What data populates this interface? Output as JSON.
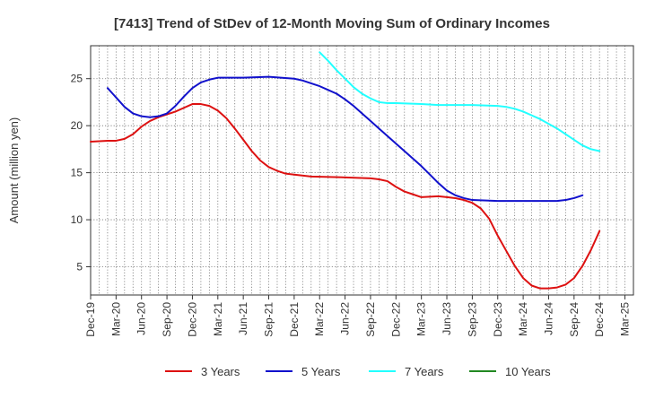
{
  "chart_data": {
    "type": "line",
    "title": "[7413]  Trend of StDev of 12-Month Moving Sum of Ordinary Incomes",
    "xlabel": "",
    "ylabel": "Amount (million yen)",
    "ylim": [
      2,
      28.5
    ],
    "yticks": [
      5,
      10,
      15,
      20,
      25
    ],
    "x_range": [
      0,
      64
    ],
    "x_ticks": [
      {
        "i": 0,
        "label": "Dec-19"
      },
      {
        "i": 3,
        "label": "Mar-20"
      },
      {
        "i": 6,
        "label": "Jun-20"
      },
      {
        "i": 9,
        "label": "Sep-20"
      },
      {
        "i": 12,
        "label": "Dec-20"
      },
      {
        "i": 15,
        "label": "Mar-21"
      },
      {
        "i": 18,
        "label": "Jun-21"
      },
      {
        "i": 21,
        "label": "Sep-21"
      },
      {
        "i": 24,
        "label": "Dec-21"
      },
      {
        "i": 27,
        "label": "Mar-22"
      },
      {
        "i": 30,
        "label": "Jun-22"
      },
      {
        "i": 33,
        "label": "Sep-22"
      },
      {
        "i": 36,
        "label": "Dec-22"
      },
      {
        "i": 39,
        "label": "Mar-23"
      },
      {
        "i": 42,
        "label": "Jun-23"
      },
      {
        "i": 45,
        "label": "Sep-23"
      },
      {
        "i": 48,
        "label": "Dec-23"
      },
      {
        "i": 51,
        "label": "Mar-24"
      },
      {
        "i": 54,
        "label": "Jun-24"
      },
      {
        "i": 57,
        "label": "Sep-24"
      },
      {
        "i": 60,
        "label": "Dec-24"
      },
      {
        "i": 63,
        "label": "Mar-25"
      }
    ],
    "grid": true,
    "legend_position": "bottom",
    "series": [
      {
        "name": "3 Years",
        "color": "#dd1111",
        "points": [
          [
            0,
            18.3
          ],
          [
            2,
            18.4
          ],
          [
            3,
            18.4
          ],
          [
            4,
            18.6
          ],
          [
            5,
            19.1
          ],
          [
            6,
            19.9
          ],
          [
            7,
            20.5
          ],
          [
            8,
            20.9
          ],
          [
            9,
            21.2
          ],
          [
            10,
            21.5
          ],
          [
            11,
            21.9
          ],
          [
            12,
            22.3
          ],
          [
            13,
            22.3
          ],
          [
            14,
            22.1
          ],
          [
            15,
            21.6
          ],
          [
            16,
            20.8
          ],
          [
            17,
            19.7
          ],
          [
            18,
            18.5
          ],
          [
            19,
            17.3
          ],
          [
            20,
            16.3
          ],
          [
            21,
            15.6
          ],
          [
            22,
            15.2
          ],
          [
            23,
            14.9
          ],
          [
            24,
            14.8
          ],
          [
            26,
            14.6
          ],
          [
            30,
            14.5
          ],
          [
            33,
            14.4
          ],
          [
            34,
            14.3
          ],
          [
            35,
            14.1
          ],
          [
            36,
            13.5
          ],
          [
            37,
            13
          ],
          [
            38,
            12.7
          ],
          [
            39,
            12.4
          ],
          [
            41,
            12.5
          ],
          [
            42,
            12.4
          ],
          [
            43,
            12.3
          ],
          [
            44,
            12.1
          ],
          [
            45,
            11.8
          ],
          [
            46,
            11.2
          ],
          [
            47,
            10.1
          ],
          [
            48,
            8.3
          ],
          [
            49,
            6.7
          ],
          [
            50,
            5.1
          ],
          [
            51,
            3.8
          ],
          [
            52,
            3
          ],
          [
            53,
            2.7
          ],
          [
            54,
            2.7
          ],
          [
            55,
            2.8
          ],
          [
            56,
            3.1
          ],
          [
            57,
            3.8
          ],
          [
            58,
            5.1
          ],
          [
            59,
            6.8
          ],
          [
            60,
            8.8
          ]
        ]
      },
      {
        "name": "5 Years",
        "color": "#1111cc",
        "points": [
          [
            2,
            24
          ],
          [
            3,
            23
          ],
          [
            4,
            22
          ],
          [
            5,
            21.3
          ],
          [
            6,
            21
          ],
          [
            7,
            20.9
          ],
          [
            8,
            21
          ],
          [
            9,
            21.3
          ],
          [
            10,
            22.1
          ],
          [
            11,
            23.1
          ],
          [
            12,
            24
          ],
          [
            13,
            24.6
          ],
          [
            14,
            24.9
          ],
          [
            15,
            25.1
          ],
          [
            18,
            25.1
          ],
          [
            21,
            25.2
          ],
          [
            24,
            25
          ],
          [
            25,
            24.8
          ],
          [
            26,
            24.5
          ],
          [
            27,
            24.2
          ],
          [
            28,
            23.8
          ],
          [
            29,
            23.4
          ],
          [
            30,
            22.8
          ],
          [
            31,
            22.1
          ],
          [
            32,
            21.3
          ],
          [
            33,
            20.5
          ],
          [
            34,
            19.7
          ],
          [
            35,
            18.9
          ],
          [
            36,
            18.1
          ],
          [
            37,
            17.3
          ],
          [
            38,
            16.5
          ],
          [
            39,
            15.7
          ],
          [
            40,
            14.8
          ],
          [
            41,
            13.9
          ],
          [
            42,
            13.1
          ],
          [
            43,
            12.6
          ],
          [
            44,
            12.3
          ],
          [
            45,
            12.1
          ],
          [
            48,
            12
          ],
          [
            51,
            12
          ],
          [
            54,
            12
          ],
          [
            55,
            12
          ],
          [
            56,
            12.1
          ],
          [
            57,
            12.3
          ],
          [
            58,
            12.6
          ]
        ]
      },
      {
        "name": "7 Years",
        "color": "#22ffff",
        "points": [
          [
            27,
            27.8
          ],
          [
            28,
            26.9
          ],
          [
            29,
            25.9
          ],
          [
            30,
            25
          ],
          [
            31,
            24.1
          ],
          [
            32,
            23.4
          ],
          [
            33,
            22.9
          ],
          [
            34,
            22.5
          ],
          [
            35,
            22.4
          ],
          [
            36,
            22.4
          ],
          [
            39,
            22.3
          ],
          [
            41,
            22.2
          ],
          [
            45,
            22.2
          ],
          [
            48,
            22.1
          ],
          [
            49,
            22
          ],
          [
            50,
            21.8
          ],
          [
            51,
            21.5
          ],
          [
            52,
            21.1
          ],
          [
            53,
            20.7
          ],
          [
            54,
            20.2
          ],
          [
            55,
            19.7
          ],
          [
            56,
            19.1
          ],
          [
            57,
            18.5
          ],
          [
            58,
            17.9
          ],
          [
            59,
            17.5
          ],
          [
            60,
            17.3
          ]
        ]
      },
      {
        "name": "10 Years",
        "color": "#228822",
        "points": []
      }
    ]
  }
}
